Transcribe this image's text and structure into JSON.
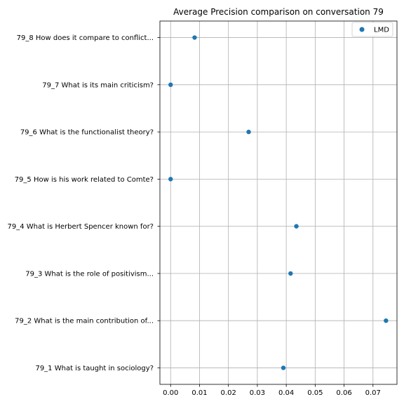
{
  "chart_data": {
    "type": "scatter",
    "title": "Average Precision comparison on conversation 79",
    "xlabel": "",
    "ylabel": "",
    "xlim": [
      -0.0037,
      0.0783
    ],
    "x_ticks": [
      "0.00",
      "0.01",
      "0.02",
      "0.03",
      "0.04",
      "0.05",
      "0.06",
      "0.07"
    ],
    "grid": true,
    "legend_position": "top-right",
    "categories": [
      "79_1 What is taught in sociology?",
      "79_2 What is the main contribution of...",
      "79_3 What is the role of positivism...",
      "79_4 What is Herbert Spencer known for?",
      "79_5 How is his work related to Comte?",
      "79_6 What is the functionalist theory?",
      "79_7 What is its main criticism?",
      "79_8 How does it compare to conflict..."
    ],
    "series": [
      {
        "name": "LMD",
        "color": "#1f77b4",
        "values": [
          0.039,
          0.0745,
          0.0415,
          0.0435,
          0.0,
          0.027,
          0.0,
          0.0083
        ]
      }
    ]
  }
}
